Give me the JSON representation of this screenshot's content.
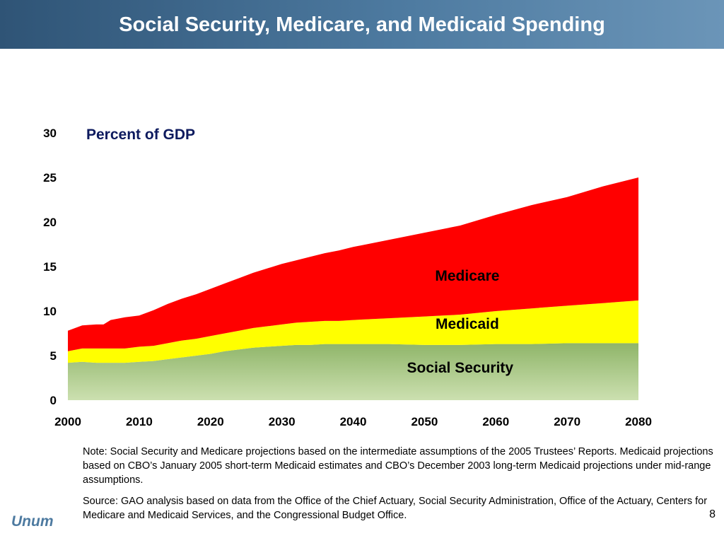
{
  "slide": {
    "title": "Social Security, Medicare, and Medicaid Spending",
    "note": "Note:  Social Security and Medicare projections based on the intermediate assumptions of the 2005 Trustees’ Reports. Medicaid projections based on CBO’s January 2005 short-term Medicaid estimates and CBO’s December 2003 long-term Medicaid projections under mid-range assumptions.",
    "source": "Source:  GAO analysis based on data from the Office of the Chief Actuary, Social Security Administration, Office of the Actuary, Centers for Medicare and Medicaid Services, and the Congressional Budget Office.",
    "brand": "Unum",
    "page_number": "8"
  },
  "colors": {
    "social_security_top": "#8fb569",
    "social_security_bottom": "#cce0b0",
    "medicaid": "#ffff00",
    "medicare": "#ff0000",
    "title_bar": "#4d7aa0"
  },
  "chart_data": {
    "type": "area",
    "stacked": true,
    "title": "Percent of GDP",
    "xlim": [
      2000,
      2080
    ],
    "ylim": [
      0,
      30
    ],
    "x_ticks": [
      2000,
      2010,
      2020,
      2030,
      2040,
      2050,
      2060,
      2070,
      2080
    ],
    "y_ticks": [
      0,
      5,
      10,
      15,
      20,
      25,
      30
    ],
    "x": [
      2000,
      2002,
      2004,
      2005,
      2006,
      2008,
      2010,
      2012,
      2014,
      2016,
      2018,
      2020,
      2022,
      2024,
      2026,
      2028,
      2030,
      2032,
      2034,
      2036,
      2038,
      2040,
      2045,
      2050,
      2055,
      2060,
      2065,
      2070,
      2075,
      2080
    ],
    "series": [
      {
        "name": "Social Security",
        "values": [
          4.2,
          4.3,
          4.2,
          4.2,
          4.2,
          4.2,
          4.3,
          4.4,
          4.6,
          4.8,
          5.0,
          5.2,
          5.5,
          5.7,
          5.9,
          6.0,
          6.1,
          6.2,
          6.2,
          6.3,
          6.3,
          6.3,
          6.3,
          6.2,
          6.2,
          6.3,
          6.3,
          6.4,
          6.4,
          6.4
        ]
      },
      {
        "name": "Medicaid",
        "values": [
          1.3,
          1.5,
          1.6,
          1.6,
          1.6,
          1.6,
          1.7,
          1.7,
          1.8,
          1.9,
          1.9,
          2.0,
          2.0,
          2.1,
          2.2,
          2.3,
          2.4,
          2.5,
          2.6,
          2.6,
          2.6,
          2.7,
          2.9,
          3.2,
          3.4,
          3.7,
          4.0,
          4.2,
          4.5,
          4.8
        ]
      },
      {
        "name": "Medicare",
        "values": [
          2.3,
          2.6,
          2.7,
          2.7,
          3.2,
          3.5,
          3.5,
          4.0,
          4.4,
          4.7,
          5.0,
          5.3,
          5.6,
          5.9,
          6.2,
          6.5,
          6.8,
          7.0,
          7.3,
          7.6,
          7.9,
          8.2,
          8.8,
          9.4,
          10.0,
          10.8,
          11.6,
          12.2,
          13.1,
          13.8
        ]
      }
    ],
    "annotations": [
      {
        "text": "Medicare",
        "x": 2056,
        "y": 13.4
      },
      {
        "text": "Medicaid",
        "x": 2056,
        "y": 8.0
      },
      {
        "text": "Social Security",
        "x": 2055,
        "y": 3.1
      }
    ],
    "grid": false
  }
}
